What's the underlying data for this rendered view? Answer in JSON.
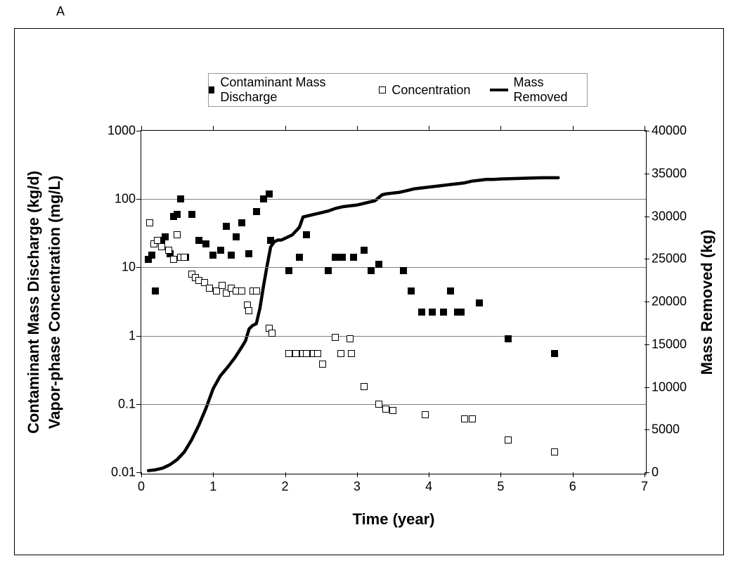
{
  "panel_label": "A",
  "chart": {
    "type": "dual-axis-scatter-line",
    "background_color": "#ffffff",
    "grid_color": "#7f7f7f",
    "border_color": "#000000",
    "x": {
      "label": "Time (year)",
      "min": 0,
      "max": 7,
      "tick_step": 1,
      "ticks": [
        0,
        1,
        2,
        3,
        4,
        5,
        6,
        7
      ]
    },
    "y_left": {
      "label1": "Contaminant Mass Discharge (kg/d)",
      "label2": "Vapor-phase Concentration (mg/L)",
      "scale": "log",
      "min": 0.01,
      "max": 1000,
      "ticks": [
        0.01,
        0.1,
        1,
        10,
        100,
        1000
      ],
      "tick_labels": [
        "0.01",
        "0.1",
        "1",
        "10",
        "100",
        "1000"
      ]
    },
    "y_right": {
      "label": "Mass Removed (kg)",
      "scale": "linear",
      "min": 0,
      "max": 40000,
      "tick_step": 5000,
      "ticks": [
        0,
        5000,
        10000,
        15000,
        20000,
        25000,
        30000,
        35000,
        40000
      ]
    },
    "label_fontsize": 22,
    "label_fontweight": "bold",
    "tick_fontsize": 18,
    "series": {
      "discharge": {
        "label": "Contaminant Mass Discharge",
        "axis": "left",
        "marker": "filled-square",
        "marker_size": 10,
        "color": "#000000",
        "data": [
          [
            0.1,
            13
          ],
          [
            0.15,
            15
          ],
          [
            0.2,
            4.5
          ],
          [
            0.28,
            25
          ],
          [
            0.33,
            28
          ],
          [
            0.4,
            16
          ],
          [
            0.45,
            55
          ],
          [
            0.5,
            60
          ],
          [
            0.55,
            100
          ],
          [
            0.62,
            14
          ],
          [
            0.7,
            60
          ],
          [
            0.8,
            25
          ],
          [
            0.9,
            22
          ],
          [
            1.0,
            15
          ],
          [
            1.1,
            18
          ],
          [
            1.18,
            40
          ],
          [
            1.25,
            15
          ],
          [
            1.32,
            28
          ],
          [
            1.4,
            45
          ],
          [
            1.5,
            16
          ],
          [
            1.6,
            65
          ],
          [
            1.7,
            100
          ],
          [
            1.78,
            120
          ],
          [
            1.8,
            25
          ],
          [
            2.05,
            9
          ],
          [
            2.2,
            14
          ],
          [
            2.3,
            30
          ],
          [
            2.6,
            9
          ],
          [
            2.7,
            14
          ],
          [
            2.8,
            14
          ],
          [
            2.95,
            14
          ],
          [
            3.1,
            18
          ],
          [
            3.2,
            9
          ],
          [
            3.3,
            11
          ],
          [
            3.65,
            9
          ],
          [
            3.75,
            4.5
          ],
          [
            3.9,
            2.2
          ],
          [
            4.05,
            2.2
          ],
          [
            4.2,
            2.2
          ],
          [
            4.3,
            4.5
          ],
          [
            4.4,
            2.2
          ],
          [
            4.45,
            2.2
          ],
          [
            4.7,
            3.0
          ],
          [
            5.1,
            0.9
          ],
          [
            5.75,
            0.55
          ]
        ]
      },
      "concentration": {
        "label": "Concentration",
        "axis": "left",
        "marker": "open-square",
        "marker_size": 10,
        "color": "#000000",
        "data": [
          [
            0.12,
            45
          ],
          [
            0.18,
            22
          ],
          [
            0.22,
            25
          ],
          [
            0.28,
            20
          ],
          [
            0.38,
            18
          ],
          [
            0.45,
            13
          ],
          [
            0.5,
            30
          ],
          [
            0.55,
            14
          ],
          [
            0.6,
            14
          ],
          [
            0.7,
            8
          ],
          [
            0.75,
            7
          ],
          [
            0.8,
            6.5
          ],
          [
            0.88,
            6
          ],
          [
            0.95,
            5
          ],
          [
            1.05,
            4.5
          ],
          [
            1.12,
            5.5
          ],
          [
            1.18,
            4.2
          ],
          [
            1.25,
            5.0
          ],
          [
            1.32,
            4.5
          ],
          [
            1.4,
            4.5
          ],
          [
            1.48,
            2.8
          ],
          [
            1.5,
            2.3
          ],
          [
            1.55,
            4.5
          ],
          [
            1.6,
            4.5
          ],
          [
            1.78,
            1.3
          ],
          [
            1.82,
            1.1
          ],
          [
            2.05,
            0.55
          ],
          [
            2.15,
            0.55
          ],
          [
            2.25,
            0.55
          ],
          [
            2.3,
            0.55
          ],
          [
            2.4,
            0.55
          ],
          [
            2.45,
            0.55
          ],
          [
            2.52,
            0.38
          ],
          [
            2.7,
            0.95
          ],
          [
            2.78,
            0.55
          ],
          [
            2.9,
            0.9
          ],
          [
            2.92,
            0.55
          ],
          [
            3.1,
            0.18
          ],
          [
            3.3,
            0.1
          ],
          [
            3.4,
            0.085
          ],
          [
            3.5,
            0.08
          ],
          [
            3.95,
            0.07
          ],
          [
            4.5,
            0.06
          ],
          [
            4.6,
            0.06
          ],
          [
            5.1,
            0.03
          ],
          [
            5.75,
            0.02
          ]
        ]
      },
      "mass_removed": {
        "label": "Mass Removed",
        "axis": "right",
        "style": "line",
        "line_width": 4.5,
        "color": "#000000",
        "data": [
          [
            0.1,
            200
          ],
          [
            0.2,
            300
          ],
          [
            0.3,
            500
          ],
          [
            0.4,
            900
          ],
          [
            0.5,
            1500
          ],
          [
            0.6,
            2400
          ],
          [
            0.7,
            3800
          ],
          [
            0.8,
            5500
          ],
          [
            0.9,
            7500
          ],
          [
            1.0,
            9800
          ],
          [
            1.1,
            11300
          ],
          [
            1.2,
            12300
          ],
          [
            1.3,
            13400
          ],
          [
            1.4,
            14700
          ],
          [
            1.45,
            15400
          ],
          [
            1.5,
            16800
          ],
          [
            1.55,
            17200
          ],
          [
            1.6,
            17400
          ],
          [
            1.65,
            19200
          ],
          [
            1.7,
            21800
          ],
          [
            1.75,
            24200
          ],
          [
            1.8,
            26400
          ],
          [
            1.85,
            27000
          ],
          [
            1.9,
            27200
          ],
          [
            1.95,
            27200
          ],
          [
            2.0,
            27400
          ],
          [
            2.1,
            27800
          ],
          [
            2.2,
            28700
          ],
          [
            2.25,
            29900
          ],
          [
            2.3,
            30000
          ],
          [
            2.4,
            30200
          ],
          [
            2.5,
            30400
          ],
          [
            2.6,
            30600
          ],
          [
            2.7,
            30900
          ],
          [
            2.8,
            31100
          ],
          [
            2.9,
            31200
          ],
          [
            3.0,
            31300
          ],
          [
            3.1,
            31500
          ],
          [
            3.2,
            31700
          ],
          [
            3.25,
            31800
          ],
          [
            3.35,
            32500
          ],
          [
            3.4,
            32600
          ],
          [
            3.5,
            32700
          ],
          [
            3.6,
            32800
          ],
          [
            3.7,
            33000
          ],
          [
            3.8,
            33200
          ],
          [
            3.9,
            33300
          ],
          [
            4.0,
            33400
          ],
          [
            4.1,
            33500
          ],
          [
            4.2,
            33600
          ],
          [
            4.3,
            33700
          ],
          [
            4.4,
            33800
          ],
          [
            4.5,
            33900
          ],
          [
            4.6,
            34100
          ],
          [
            4.7,
            34200
          ],
          [
            4.8,
            34300
          ],
          [
            4.9,
            34300
          ],
          [
            5.0,
            34350
          ],
          [
            5.2,
            34400
          ],
          [
            5.4,
            34450
          ],
          [
            5.6,
            34500
          ],
          [
            5.8,
            34500
          ]
        ]
      }
    }
  }
}
